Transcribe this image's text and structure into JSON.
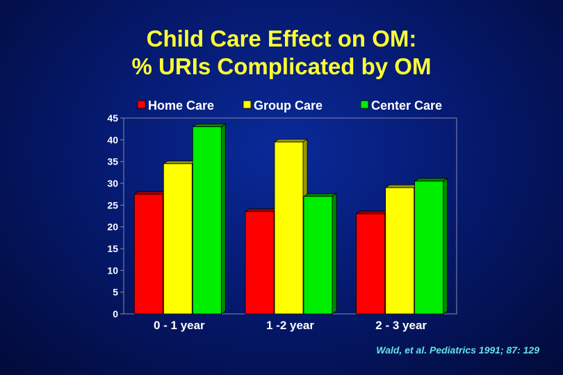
{
  "title_lines": [
    "Child Care Effect on OM:",
    "% URIs Complicated by OM"
  ],
  "citation": "Wald, et al. Pediatrics 1991; 87: 129",
  "chart_data": {
    "type": "bar",
    "title": "Child Care Effect on OM: % URIs Complicated by OM",
    "categories": [
      "0 - 1 year",
      "1 -2 year",
      "2 - 3 year"
    ],
    "series": [
      {
        "name": "Home Care",
        "values": [
          27.5,
          23.5,
          23
        ],
        "color": "#ff0000",
        "side": "#990000"
      },
      {
        "name": "Group Care",
        "values": [
          34.5,
          39.5,
          29
        ],
        "color": "#ffff00",
        "side": "#999900"
      },
      {
        "name": "Center Care",
        "values": [
          43,
          27,
          30.5
        ],
        "color": "#00ee00",
        "side": "#008800"
      }
    ],
    "yticks": [
      "45",
      "40",
      "35",
      "30",
      "25",
      "20",
      "15",
      "10",
      "5",
      "0"
    ],
    "ylim": [
      0,
      45
    ],
    "legend_position": "top",
    "grid": false
  }
}
